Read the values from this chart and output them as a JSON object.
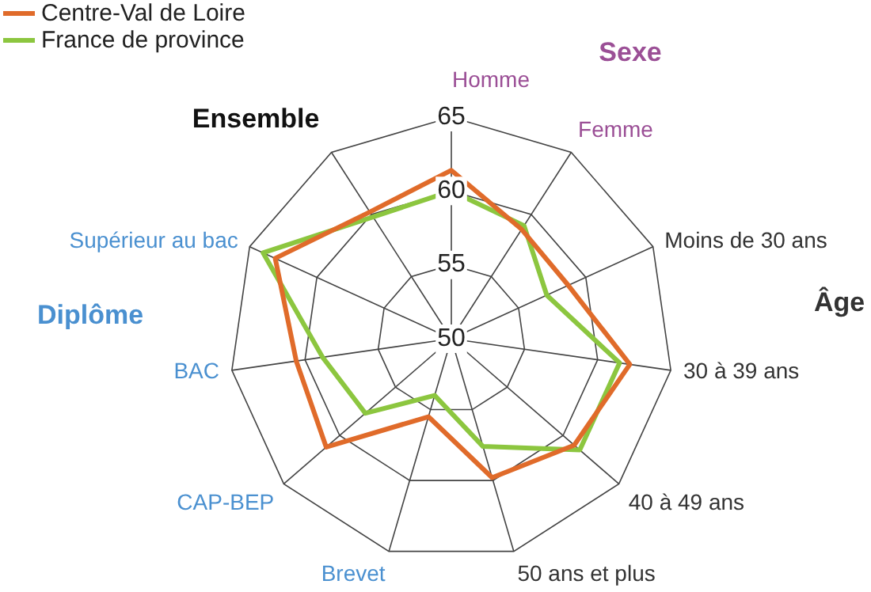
{
  "chart_data": {
    "type": "radar",
    "categories": [
      "Homme",
      "Femme",
      "Moins de 30 ans",
      "30 à 39 ans",
      "40 à 49 ans",
      "50 ans et plus",
      "Brevet",
      "CAP-BEP",
      "BAC",
      "Supérieur au bac",
      "Ensemble"
    ],
    "series": [
      {
        "name": "Centre-Val de Loire",
        "color": "#e06b2a",
        "values": [
          61.4,
          58.8,
          58.7,
          62.2,
          61.0,
          59.8,
          55.5,
          61.2,
          60.6,
          63.1,
          60.2
        ]
      },
      {
        "name": "France de province",
        "color": "#8cc63f",
        "values": [
          60.0,
          59.1,
          57.1,
          61.5,
          61.5,
          57.6,
          54.0,
          57.7,
          58.8,
          64.0,
          59.8
        ]
      }
    ],
    "ylim": [
      50,
      65
    ],
    "yticks": [
      50,
      55,
      60,
      65
    ],
    "grid": true,
    "legend": "top left",
    "marker": "none",
    "line_style": "solid",
    "annotations": [
      "Sexe",
      "Âge",
      "Diplôme"
    ]
  }
}
